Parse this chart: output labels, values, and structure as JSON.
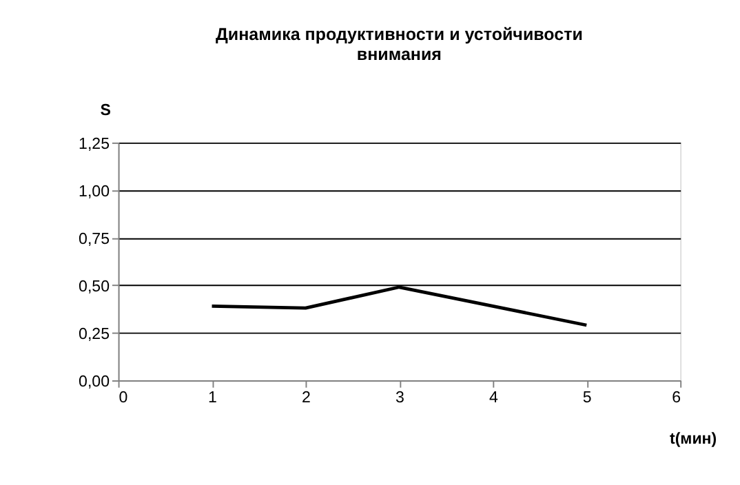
{
  "chart_data": {
    "type": "line",
    "title": [
      "Динамика продуктивности и устойчивости",
      "внимания"
    ],
    "xlabel": "t(мин)",
    "ylabel": "S",
    "x": [
      1,
      2,
      3,
      4,
      5
    ],
    "series": [
      {
        "color": "#000000",
        "values": [
          0.39,
          0.38,
          0.49,
          0.39,
          0.29
        ]
      }
    ],
    "xlim": [
      0,
      6
    ],
    "xticks": [
      0,
      1,
      2,
      3,
      4,
      5,
      6
    ],
    "ylim": [
      0,
      1.25
    ],
    "yticks": [
      {
        "value": 0,
        "label": "0,00"
      },
      {
        "value": 0.25,
        "label": "0,25"
      },
      {
        "value": 0.5,
        "label": "0,50"
      },
      {
        "value": 0.75,
        "label": "0,75"
      },
      {
        "value": 1,
        "label": "1,00"
      },
      {
        "value": 1.25,
        "label": "1,25"
      }
    ],
    "grid": "y",
    "marker": "none",
    "line_style": "solid"
  }
}
